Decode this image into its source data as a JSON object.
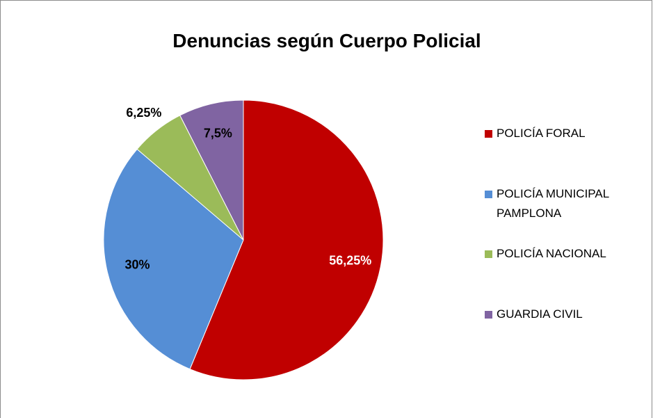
{
  "chart_data": {
    "type": "pie",
    "title": "Denuncias según Cuerpo Policial",
    "categories": [
      "POLICÍA FORAL",
      "POLICÍA MUNICIPAL PAMPLONA",
      "POLICÍA NACIONAL",
      "GUARDIA CIVIL"
    ],
    "values": [
      56.25,
      30,
      6.25,
      7.5
    ],
    "value_labels": [
      "56,25%",
      "30%",
      "6,25%",
      "7,5%"
    ],
    "colors": [
      "#c00000",
      "#558ed5",
      "#9bbb59",
      "#8064a2"
    ],
    "legend": "right"
  }
}
